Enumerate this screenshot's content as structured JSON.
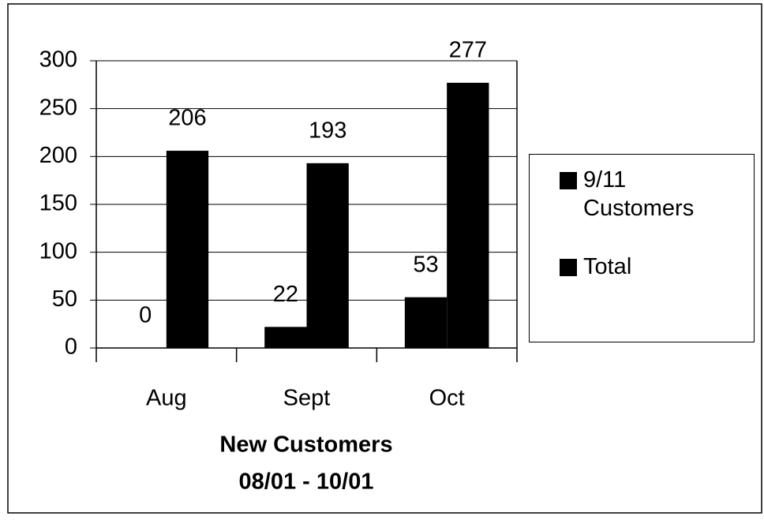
{
  "chart_data": {
    "type": "bar",
    "xlabel": [
      "New Customers",
      "08/01 - 10/01"
    ],
    "categories": [
      "Aug",
      "Sept",
      "Oct"
    ],
    "series": [
      {
        "name": "9/11 Customers",
        "color": "#000000",
        "values": [
          0,
          22,
          53
        ]
      },
      {
        "name": "Total",
        "color": "#000000",
        "values": [
          206,
          193,
          277
        ]
      }
    ],
    "ylim": [
      0,
      300
    ],
    "yticks": [
      0,
      50,
      100,
      150,
      200,
      250,
      300
    ],
    "grid": true,
    "legend": "right"
  }
}
